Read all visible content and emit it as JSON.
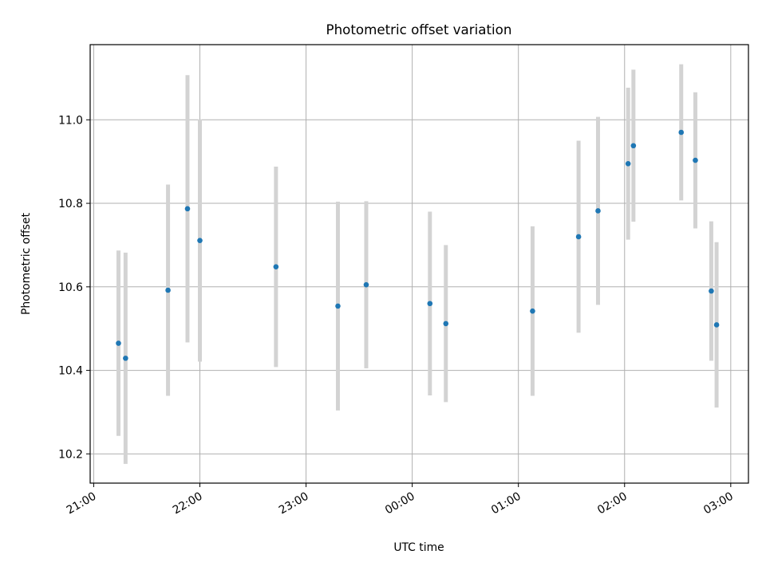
{
  "chart_data": {
    "type": "scatter",
    "title": "Photometric offset variation",
    "xlabel": "UTC time",
    "ylabel": "Photometric offset",
    "x_ticks": [
      "21:00",
      "22:00",
      "23:00",
      "00:00",
      "01:00",
      "02:00",
      "03:00"
    ],
    "y_ticks": [
      "10.2",
      "10.4",
      "10.6",
      "10.8",
      "11.0"
    ],
    "y_tick_values": [
      10.2,
      10.4,
      10.6,
      10.8,
      11.0
    ],
    "xlim": [
      "20:58",
      "03:10"
    ],
    "ylim": [
      10.13,
      11.18
    ],
    "grid": true,
    "colors": {
      "points": "#1f77b4",
      "errorbars": "#d3d3d3",
      "grid": "#b0b0b0"
    },
    "points": [
      {
        "x": "21:14",
        "y": 10.465,
        "yerr": 0.222
      },
      {
        "x": "21:18",
        "y": 10.429,
        "yerr": 0.253
      },
      {
        "x": "21:42",
        "y": 10.592,
        "yerr": 0.253
      },
      {
        "x": "21:53",
        "y": 10.787,
        "yerr": 0.32
      },
      {
        "x": "22:00",
        "y": 10.711,
        "yerr": 0.29
      },
      {
        "x": "22:43",
        "y": 10.648,
        "yerr": 0.24
      },
      {
        "x": "23:18",
        "y": 10.554,
        "yerr": 0.25
      },
      {
        "x": "23:34",
        "y": 10.605,
        "yerr": 0.2
      },
      {
        "x": "00:10",
        "y": 10.56,
        "yerr": 0.22
      },
      {
        "x": "00:19",
        "y": 10.512,
        "yerr": 0.188
      },
      {
        "x": "01:08",
        "y": 10.542,
        "yerr": 0.203
      },
      {
        "x": "01:34",
        "y": 10.72,
        "yerr": 0.23
      },
      {
        "x": "01:45",
        "y": 10.782,
        "yerr": 0.225
      },
      {
        "x": "02:02",
        "y": 10.895,
        "yerr": 0.182
      },
      {
        "x": "02:05",
        "y": 10.938,
        "yerr": 0.182
      },
      {
        "x": "02:32",
        "y": 10.97,
        "yerr": 0.163
      },
      {
        "x": "02:40",
        "y": 10.903,
        "yerr": 0.163
      },
      {
        "x": "02:49",
        "y": 10.59,
        "yerr": 0.167
      },
      {
        "x": "02:52",
        "y": 10.509,
        "yerr": 0.198
      }
    ]
  }
}
